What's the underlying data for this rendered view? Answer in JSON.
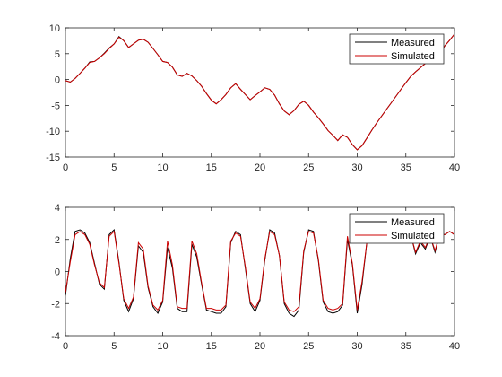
{
  "colors": {
    "measured": "#000000",
    "simulated": "#cc0000",
    "axis": "#262626",
    "background": "#ffffff"
  },
  "chart_data": [
    {
      "type": "line",
      "xlim": [
        0,
        40
      ],
      "ylim": [
        -15,
        10
      ],
      "xticks": [
        0,
        5,
        10,
        15,
        20,
        25,
        30,
        35,
        40
      ],
      "yticks": [
        -15,
        -10,
        -5,
        0,
        5,
        10
      ],
      "grid": false,
      "legend_position": "top-right",
      "legend": [
        "Measured",
        "Simulated"
      ],
      "series": [
        {
          "name": "Measured",
          "x": [
            0,
            0.5,
            1,
            1.5,
            2,
            2.5,
            3,
            3.5,
            4,
            4.5,
            5,
            5.5,
            6,
            6.5,
            7,
            7.5,
            8,
            8.5,
            9,
            9.5,
            10,
            10.5,
            11,
            11.5,
            12,
            12.5,
            13,
            13.5,
            14,
            14.5,
            15,
            15.5,
            16,
            16.5,
            17,
            17.5,
            18,
            18.5,
            19,
            19.5,
            20,
            20.5,
            21,
            21.5,
            22,
            22.5,
            23,
            23.5,
            24,
            24.5,
            25,
            25.5,
            26,
            26.5,
            27,
            27.5,
            28,
            28.5,
            29,
            29.5,
            30,
            30.5,
            31,
            31.5,
            32,
            32.5,
            33,
            33.5,
            34,
            34.5,
            35,
            35.5,
            36,
            36.5,
            37,
            37.5,
            38,
            38.5,
            39,
            39.5,
            40
          ],
          "y": [
            -0.2,
            -0.5,
            0.2,
            1.2,
            2.2,
            3.4,
            3.5,
            4.2,
            5.1,
            6.1,
            6.9,
            8.3,
            7.5,
            6.2,
            6.9,
            7.6,
            7.8,
            7.2,
            6.0,
            4.8,
            3.5,
            3.3,
            2.4,
            0.9,
            0.6,
            1.2,
            0.7,
            -0.2,
            -1.3,
            -2.7,
            -4.0,
            -4.7,
            -3.9,
            -2.9,
            -1.6,
            -0.8,
            -1.9,
            -2.9,
            -3.9,
            -3.1,
            -2.4,
            -1.6,
            -1.9,
            -3.0,
            -4.7,
            -6.1,
            -6.8,
            -6.0,
            -4.8,
            -4.2,
            -5.0,
            -6.3,
            -7.4,
            -8.6,
            -9.9,
            -10.8,
            -11.8,
            -10.7,
            -11.2,
            -12.6,
            -13.6,
            -12.8,
            -11.3,
            -9.8,
            -8.4,
            -7.1,
            -5.8,
            -4.5,
            -3.2,
            -1.9,
            -0.6,
            0.6,
            1.5,
            2.3,
            3.1,
            3.6,
            4.1,
            5.0,
            6.5,
            7.6,
            8.8
          ]
        },
        {
          "name": "Simulated",
          "x": [
            0,
            0.5,
            1,
            1.5,
            2,
            2.5,
            3,
            3.5,
            4,
            4.5,
            5,
            5.5,
            6,
            6.5,
            7,
            7.5,
            8,
            8.5,
            9,
            9.5,
            10,
            10.5,
            11,
            11.5,
            12,
            12.5,
            13,
            13.5,
            14,
            14.5,
            15,
            15.5,
            16,
            16.5,
            17,
            17.5,
            18,
            18.5,
            19,
            19.5,
            20,
            20.5,
            21,
            21.5,
            22,
            22.5,
            23,
            23.5,
            24,
            24.5,
            25,
            25.5,
            26,
            26.5,
            27,
            27.5,
            28,
            28.5,
            29,
            29.5,
            30,
            30.5,
            31,
            31.5,
            32,
            32.5,
            33,
            33.5,
            34,
            34.5,
            35,
            35.5,
            36,
            36.5,
            37,
            37.5,
            38,
            38.5,
            39,
            39.5,
            40
          ],
          "y": [
            -0.2,
            -0.5,
            0.2,
            1.2,
            2.2,
            3.3,
            3.5,
            4.2,
            5.0,
            6.0,
            6.9,
            8.2,
            7.5,
            6.2,
            6.9,
            7.6,
            7.8,
            7.2,
            6.0,
            4.8,
            3.5,
            3.3,
            2.4,
            0.9,
            0.6,
            1.2,
            0.7,
            -0.2,
            -1.3,
            -2.7,
            -4.0,
            -4.7,
            -3.9,
            -2.9,
            -1.6,
            -0.8,
            -1.9,
            -2.9,
            -3.9,
            -3.1,
            -2.4,
            -1.6,
            -1.9,
            -3.0,
            -4.7,
            -6.1,
            -6.8,
            -6.0,
            -4.8,
            -4.2,
            -5.0,
            -6.3,
            -7.4,
            -8.6,
            -9.9,
            -10.8,
            -11.8,
            -10.7,
            -11.2,
            -12.6,
            -13.6,
            -12.8,
            -11.3,
            -9.8,
            -8.4,
            -7.1,
            -5.8,
            -4.5,
            -3.2,
            -1.9,
            -0.6,
            0.6,
            1.5,
            2.3,
            3.1,
            3.6,
            4.1,
            5.0,
            6.5,
            7.6,
            8.8
          ]
        }
      ]
    },
    {
      "type": "line",
      "xlim": [
        0,
        40
      ],
      "ylim": [
        -4,
        4
      ],
      "xticks": [
        0,
        5,
        10,
        15,
        20,
        25,
        30,
        35,
        40
      ],
      "yticks": [
        -4,
        -2,
        0,
        2,
        4
      ],
      "grid": false,
      "legend_position": "top-right",
      "legend": [
        "Measured",
        "Simulated"
      ],
      "series": [
        {
          "name": "Measured",
          "x": [
            0,
            0.5,
            1,
            1.5,
            2,
            2.5,
            3,
            3.5,
            4,
            4.5,
            5,
            5.5,
            6,
            6.5,
            7,
            7.5,
            8,
            8.5,
            9,
            9.5,
            10,
            10.5,
            11,
            11.5,
            12,
            12.5,
            13,
            13.5,
            14,
            14.5,
            15,
            15.5,
            16,
            16.5,
            17,
            17.5,
            18,
            18.5,
            19,
            19.5,
            20,
            20.5,
            21,
            21.5,
            22,
            22.5,
            23,
            23.5,
            24,
            24.5,
            25,
            25.5,
            26,
            26.5,
            27,
            27.5,
            28,
            28.5,
            29,
            29.5,
            30,
            30.5,
            31,
            31.5,
            32,
            32.5,
            33,
            33.5,
            34,
            34.5,
            35,
            35.5,
            36,
            36.5,
            37,
            37.5,
            38,
            38.5,
            39,
            39.5,
            40
          ],
          "y": [
            -1.5,
            0.8,
            2.5,
            2.6,
            2.4,
            1.8,
            0.5,
            -0.8,
            -1.1,
            2.3,
            2.6,
            0.6,
            -1.8,
            -2.5,
            -1.7,
            1.6,
            1.2,
            -1.0,
            -2.2,
            -2.6,
            -1.9,
            1.5,
            0.2,
            -2.3,
            -2.5,
            -2.5,
            1.7,
            0.9,
            -0.8,
            -2.4,
            -2.5,
            -2.6,
            -2.6,
            -2.2,
            1.8,
            2.5,
            2.3,
            0.2,
            -2.0,
            -2.5,
            -1.8,
            0.7,
            2.6,
            2.4,
            1.0,
            -2.0,
            -2.6,
            -2.8,
            -2.4,
            1.2,
            2.6,
            2.5,
            0.7,
            -1.9,
            -2.5,
            -2.6,
            -2.5,
            -2.1,
            2.0,
            0.4,
            -2.6,
            -0.8,
            1.9,
            2.4,
            2.5,
            2.4,
            2.3,
            2.4,
            2.3,
            2.4,
            2.4,
            2.3,
            1.1,
            1.8,
            1.4,
            2.2,
            1.2,
            2.4,
            2.3,
            2.5,
            2.3
          ]
        },
        {
          "name": "Simulated",
          "x": [
            0,
            0.5,
            1,
            1.5,
            2,
            2.5,
            3,
            3.5,
            4,
            4.5,
            5,
            5.5,
            6,
            6.5,
            7,
            7.5,
            8,
            8.5,
            9,
            9.5,
            10,
            10.5,
            11,
            11.5,
            12,
            12.5,
            13,
            13.5,
            14,
            14.5,
            15,
            15.5,
            16,
            16.5,
            17,
            17.5,
            18,
            18.5,
            19,
            19.5,
            20,
            20.5,
            21,
            21.5,
            22,
            22.5,
            23,
            23.5,
            24,
            24.5,
            25,
            25.5,
            26,
            26.5,
            27,
            27.5,
            28,
            28.5,
            29,
            29.5,
            30,
            30.5,
            31,
            31.5,
            32,
            32.5,
            33,
            33.5,
            34,
            34.5,
            35,
            35.5,
            36,
            36.5,
            37,
            37.5,
            38,
            38.5,
            39,
            39.5,
            40
          ],
          "y": [
            -1.3,
            0.6,
            2.3,
            2.5,
            2.3,
            1.7,
            0.4,
            -0.7,
            -1.0,
            2.2,
            2.5,
            0.5,
            -1.7,
            -2.3,
            -1.6,
            1.8,
            1.4,
            -0.9,
            -2.1,
            -2.4,
            -1.8,
            1.9,
            0.4,
            -2.2,
            -2.3,
            -2.3,
            1.9,
            1.1,
            -0.7,
            -2.3,
            -2.3,
            -2.4,
            -2.4,
            -2.1,
            1.9,
            2.4,
            2.2,
            0.3,
            -1.9,
            -2.3,
            -1.7,
            0.8,
            2.5,
            2.3,
            1.0,
            -1.9,
            -2.4,
            -2.5,
            -2.2,
            1.3,
            2.5,
            2.4,
            0.8,
            -1.8,
            -2.3,
            -2.4,
            -2.3,
            -2.0,
            2.2,
            0.5,
            -2.4,
            -0.6,
            1.9,
            2.4,
            2.5,
            2.4,
            2.3,
            2.4,
            2.3,
            2.4,
            2.4,
            2.3,
            1.2,
            1.9,
            1.5,
            2.2,
            1.3,
            2.4,
            2.3,
            2.5,
            2.3
          ]
        }
      ]
    }
  ]
}
